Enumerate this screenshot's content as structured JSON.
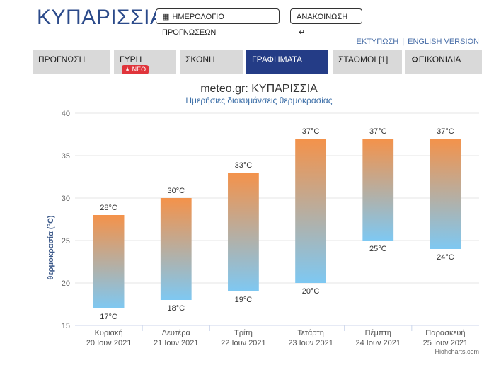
{
  "header": {
    "title": "ΚΥΠΑΡΙΣΣΙΑ",
    "calendar_button": "ΗΜΕΡΟΛΟΓΙΟ ΠΡΟΓΝΩΣΕΩΝ",
    "announcement_button": "ΑΝΑΚΟΙΝΩΣΗ",
    "print_link": "ΕΚΤΥΠΩΣΗ",
    "separator": "|",
    "english_link": "ENGLISH VERSION"
  },
  "tabs": [
    {
      "label": "ΠΡΟΓΝΩΣΗ",
      "active": false
    },
    {
      "label": "ΓΥΡΗ",
      "badge": "ΝΕΟ",
      "active": false
    },
    {
      "label": "ΣΚΟΝΗ",
      "active": false
    },
    {
      "label": "ΓΡΑΦΗΜΑΤΑ",
      "active": true
    },
    {
      "label": "ΣΤΑΘΜΟΙ [1]",
      "active": false
    },
    {
      "label": "ΕΙΚΟΝΙΔΙΑ",
      "active": false
    }
  ],
  "colors": {
    "accent": "#243c86",
    "bar_top": "#f4924a",
    "bar_bottom": "#7ec8f2",
    "badge": "#e0343b",
    "title": "#2b4a8a"
  },
  "chart_data": {
    "type": "bar",
    "subtype": "columnrange",
    "title": "meteo.gr: ΚΥΠΑΡΙΣΣΙΑ",
    "subtitle": "Ημερήσιες διακυμάνσεις θερμοκρασίας",
    "ylabel": "θερμοκρασία (°C)",
    "ylim": [
      15,
      40
    ],
    "yticks": [
      15,
      20,
      25,
      30,
      35,
      40
    ],
    "grid": true,
    "categories": [
      [
        "Κυριακή",
        "20 Ιουν 2021"
      ],
      [
        "Δευτέρα",
        "21 Ιουν 2021"
      ],
      [
        "Τρίτη",
        "22 Ιουν 2021"
      ],
      [
        "Τετάρτη",
        "23 Ιουν 2021"
      ],
      [
        "Πέμπτη",
        "24 Ιουν 2021"
      ],
      [
        "Παρασκευή",
        "25 Ιουν 2021"
      ]
    ],
    "low": [
      17,
      18,
      19,
      20,
      25,
      24
    ],
    "high": [
      28,
      30,
      33,
      37,
      37,
      37
    ],
    "unit": "°C",
    "credits": "Highcharts.com"
  }
}
